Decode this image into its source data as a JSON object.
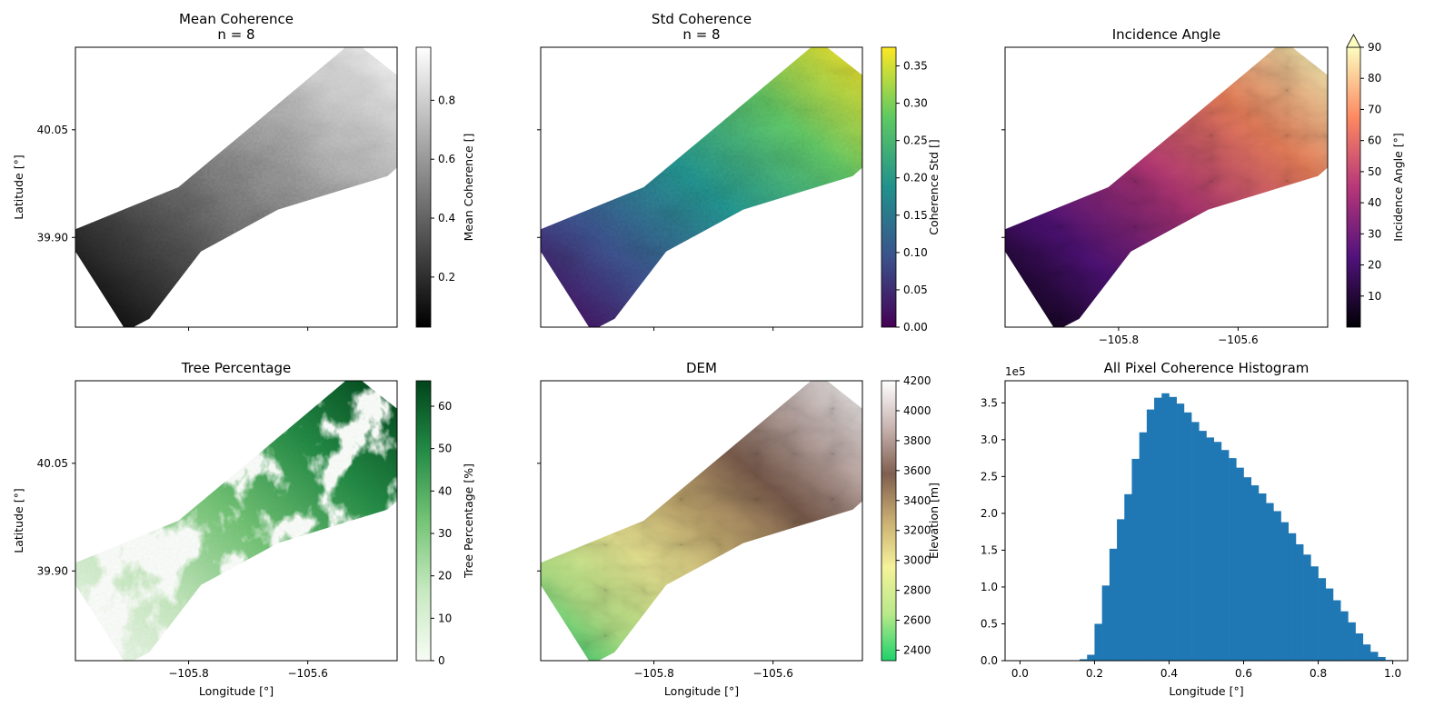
{
  "figure": {
    "background": "#ffffff"
  },
  "chart_data": [
    {
      "id": "mean",
      "type": "heatmap",
      "title": "Mean Coherence",
      "subtitle": "n = 8",
      "xlabel": "",
      "ylabel": "Latitude [°]",
      "xticks": [],
      "yticks": [
        {
          "value": 40.05,
          "label": "40.05"
        },
        {
          "value": 39.9,
          "label": "39.90"
        }
      ],
      "xlim": [
        -105.99,
        -105.45
      ],
      "ylim": [
        39.775,
        40.165
      ],
      "colormap": [
        "#000000",
        "#ffffff"
      ],
      "colorbar": {
        "label": "Mean Coherence []",
        "range": [
          0.03,
          0.98
        ],
        "ticks": [
          0.2,
          0.4,
          0.6,
          0.8
        ],
        "extend_max": false
      }
    },
    {
      "id": "std",
      "type": "heatmap",
      "title": "Std Coherence",
      "subtitle": "n = 8",
      "xlabel": "",
      "ylabel": "",
      "xticks": [],
      "yticks": [],
      "xlim": [
        -105.99,
        -105.45
      ],
      "ylim": [
        39.775,
        40.165
      ],
      "colormap": [
        "#440154",
        "#3b528b",
        "#21918c",
        "#5ec962",
        "#fde725"
      ],
      "colorbar": {
        "label": "Coherence Std []",
        "range": [
          0.0,
          0.375
        ],
        "ticks": [
          0.0,
          0.05,
          0.1,
          0.15,
          0.2,
          0.25,
          0.3,
          0.35
        ],
        "extend_max": false
      }
    },
    {
      "id": "inc",
      "type": "heatmap",
      "title": "Incidence Angle",
      "subtitle": "",
      "xlabel": "",
      "ylabel": "",
      "xticks": [
        {
          "value": -105.8,
          "label": "−105.8"
        },
        {
          "value": -105.6,
          "label": "−105.6"
        }
      ],
      "yticks": [],
      "xlim": [
        -105.99,
        -105.45
      ],
      "ylim": [
        39.775,
        40.165
      ],
      "colormap": [
        "#000004",
        "#51127c",
        "#b73779",
        "#fc8961",
        "#fcfdbf"
      ],
      "colorbar": {
        "label": "Incidence Angle [°]",
        "range": [
          0,
          90
        ],
        "ticks": [
          10,
          20,
          30,
          40,
          50,
          60,
          70,
          80,
          90
        ],
        "extend_max": true
      }
    },
    {
      "id": "tree",
      "type": "heatmap",
      "title": "Tree Percentage",
      "subtitle": "",
      "xlabel": "Longitude [°]",
      "ylabel": "Latitude [°]",
      "xticks": [
        {
          "value": -105.8,
          "label": "−105.8"
        },
        {
          "value": -105.6,
          "label": "−105.6"
        }
      ],
      "yticks": [
        {
          "value": 40.05,
          "label": "40.05"
        },
        {
          "value": 39.9,
          "label": "39.90"
        }
      ],
      "xlim": [
        -105.99,
        -105.45
      ],
      "ylim": [
        39.775,
        40.165
      ],
      "colormap": [
        "#f7fcf5",
        "#c7e9c0",
        "#74c476",
        "#238b45",
        "#00441b"
      ],
      "colorbar": {
        "label": "Tree Percentage [%]",
        "range": [
          0,
          66
        ],
        "ticks": [
          0,
          10,
          20,
          30,
          40,
          50,
          60
        ],
        "extend_max": false
      }
    },
    {
      "id": "dem",
      "type": "heatmap",
      "title": "DEM",
      "subtitle": "",
      "xlabel": "Longitude [°]",
      "ylabel": "",
      "xticks": [
        {
          "value": -105.8,
          "label": "−105.8"
        },
        {
          "value": -105.6,
          "label": "−105.6"
        }
      ],
      "yticks": [],
      "xlim": [
        -105.99,
        -105.45
      ],
      "ylim": [
        39.775,
        40.165
      ],
      "colormap": [
        "#1fd26b",
        "#b8e98a",
        "#f5f29a",
        "#c9ae72",
        "#7f5f4f",
        "#c8b4b0",
        "#ffffff"
      ],
      "colorbar": {
        "label": "Elevation [m]",
        "range": [
          2330,
          4200
        ],
        "ticks": [
          2400,
          2600,
          2800,
          3000,
          3200,
          3400,
          3600,
          3800,
          4000,
          4200
        ],
        "extend_max": false
      }
    },
    {
      "id": "hist",
      "type": "bar",
      "title": "All Pixel Coherence Histogram",
      "xlabel": "Longitude [°]",
      "ylabel": "",
      "y_multiplier": "1e5",
      "bar_color": "#1f77b4",
      "xlim": [
        -0.04,
        1.04
      ],
      "ylim": [
        0,
        3.8
      ],
      "xticks": [
        0.0,
        0.2,
        0.4,
        0.6,
        0.8,
        1.0
      ],
      "yticks": [
        0.0,
        0.5,
        1.0,
        1.5,
        2.0,
        2.5,
        3.0,
        3.5
      ],
      "bin_width": 0.02,
      "bin_starts": [
        0.14,
        0.16,
        0.18,
        0.2,
        0.22,
        0.24,
        0.26,
        0.28,
        0.3,
        0.32,
        0.34,
        0.36,
        0.38,
        0.4,
        0.42,
        0.44,
        0.46,
        0.48,
        0.5,
        0.52,
        0.54,
        0.56,
        0.58,
        0.6,
        0.62,
        0.64,
        0.66,
        0.68,
        0.7,
        0.72,
        0.74,
        0.76,
        0.78,
        0.8,
        0.82,
        0.84,
        0.86,
        0.88,
        0.9,
        0.92,
        0.94,
        0.96,
        0.98
      ],
      "values": [
        0.005,
        0.02,
        0.08,
        0.5,
        1.02,
        1.52,
        1.92,
        2.26,
        2.74,
        3.1,
        3.41,
        3.57,
        3.63,
        3.58,
        3.49,
        3.37,
        3.24,
        3.12,
        3.03,
        2.97,
        2.86,
        2.75,
        2.62,
        2.49,
        2.38,
        2.27,
        2.14,
        2.03,
        1.88,
        1.73,
        1.58,
        1.44,
        1.28,
        1.12,
        0.98,
        0.82,
        0.67,
        0.52,
        0.37,
        0.22,
        0.12,
        0.05,
        0.01
      ]
    }
  ]
}
